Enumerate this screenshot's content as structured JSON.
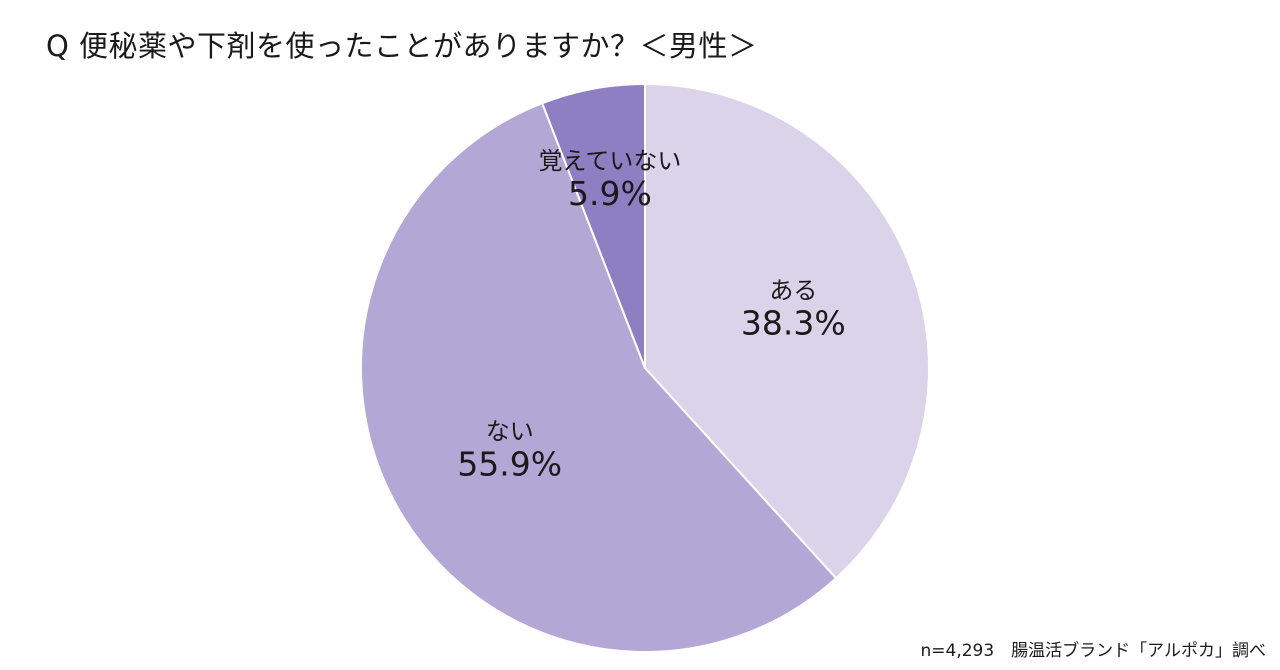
{
  "title": "Q 便秘薬や下剤を使ったことがありますか？＜男性＞",
  "source": "n=4,293　腸温活ブランド「アルポカ」調べ",
  "chart_data": {
    "type": "pie",
    "title": "Q 便秘薬や下剤を使ったことがありますか？＜男性＞",
    "categories": [
      "ある",
      "ない",
      "覚えていない"
    ],
    "values": [
      38.3,
      55.9,
      5.9
    ],
    "value_labels": [
      "38.3%",
      "55.9%",
      "5.9%"
    ],
    "colors": [
      "#dad3ea",
      "#b3a7d6",
      "#8e7fc3"
    ],
    "start_angle": "12 o'clock",
    "direction": "clockwise",
    "legend": "none (labels inside slices)"
  }
}
